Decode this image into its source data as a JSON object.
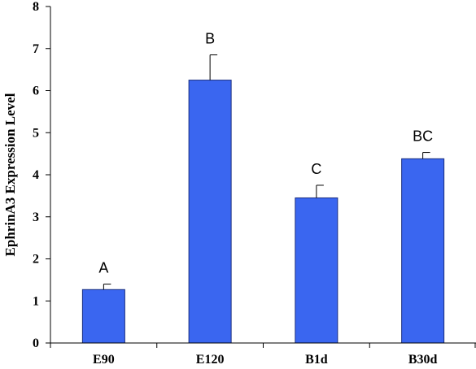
{
  "chart_data": {
    "type": "bar",
    "title": "",
    "xlabel": "",
    "ylabel": "EphrinA3 Expression Level",
    "ylim": [
      0,
      8
    ],
    "yticks": [
      "0",
      "1",
      "2",
      "3",
      "4",
      "5",
      "6",
      "7",
      "8"
    ],
    "categories": [
      "E90",
      "E120",
      "B1d",
      "B30d"
    ],
    "values": [
      1.27,
      6.25,
      3.45,
      4.38
    ],
    "error_upper": [
      0.13,
      0.6,
      0.3,
      0.15
    ],
    "significance_labels": [
      "A",
      "B",
      "C",
      "BC"
    ],
    "grid": false,
    "bar_color": "#3a66f0"
  }
}
